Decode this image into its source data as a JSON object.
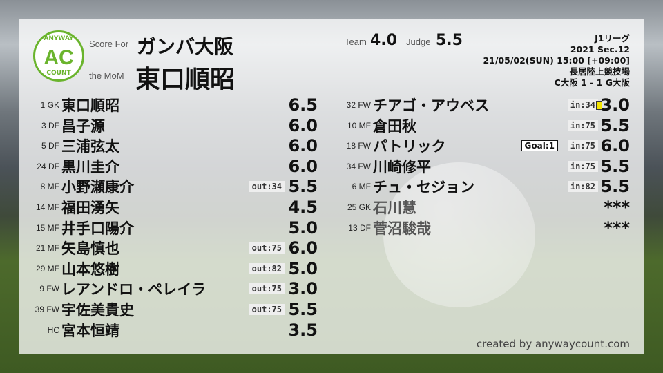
{
  "logo": {
    "top": "ANYWAY",
    "center": "AC",
    "bottom": "COUNT",
    "color": "#6ab42d"
  },
  "header": {
    "score_for_label": "Score For",
    "team": "ガンバ大阪",
    "mom_label": "the MoM",
    "mom": "東口順昭",
    "team_label": "Team",
    "team_score": "4.0",
    "judge_label": "Judge",
    "judge_score": "5.5"
  },
  "match": {
    "league": "J1リーグ",
    "section": "2021 Sec.12",
    "datetime": "21/05/02(SUN) 15:00 [+09:00]",
    "venue": "長居陸上競技場",
    "result": "C大阪 1 - 1 G大阪"
  },
  "starters": [
    {
      "num": "1",
      "pos": "GK",
      "name": "東口順昭",
      "score": "6.5"
    },
    {
      "num": "3",
      "pos": "DF",
      "name": "昌子源",
      "score": "6.0"
    },
    {
      "num": "5",
      "pos": "DF",
      "name": "三浦弦太",
      "score": "6.0"
    },
    {
      "num": "24",
      "pos": "DF",
      "name": "黒川圭介",
      "score": "6.0"
    },
    {
      "num": "8",
      "pos": "MF",
      "name": "小野瀬康介",
      "score": "5.5",
      "sub": "out:34"
    },
    {
      "num": "14",
      "pos": "MF",
      "name": "福田湧矢",
      "score": "4.5"
    },
    {
      "num": "15",
      "pos": "MF",
      "name": "井手口陽介",
      "score": "5.0"
    },
    {
      "num": "21",
      "pos": "MF",
      "name": "矢島慎也",
      "score": "6.0",
      "sub": "out:75"
    },
    {
      "num": "29",
      "pos": "MF",
      "name": "山本悠樹",
      "score": "5.0",
      "sub": "out:82"
    },
    {
      "num": "9",
      "pos": "FW",
      "name": "レアンドロ・ペレイラ",
      "score": "3.0",
      "sub": "out:75"
    },
    {
      "num": "39",
      "pos": "FW",
      "name": "宇佐美貴史",
      "score": "5.5",
      "sub": "out:75"
    },
    {
      "num": "",
      "pos": "HC",
      "name": "宮本恒靖",
      "score": "3.5"
    }
  ],
  "subs": [
    {
      "num": "32",
      "pos": "FW",
      "name": "チアゴ・アウベス",
      "score": "3.0",
      "sub": "in:34",
      "yellow_card": true
    },
    {
      "num": "10",
      "pos": "MF",
      "name": "倉田秋",
      "score": "5.5",
      "sub": "in:75"
    },
    {
      "num": "18",
      "pos": "FW",
      "name": "パトリック",
      "score": "6.0",
      "sub": "in:75",
      "goal": "Goal:1"
    },
    {
      "num": "34",
      "pos": "FW",
      "name": "川崎修平",
      "score": "5.5",
      "sub": "in:75"
    },
    {
      "num": "6",
      "pos": "MF",
      "name": "チュ・セジョン",
      "score": "5.5",
      "sub": "in:82"
    },
    {
      "num": "25",
      "pos": "GK",
      "name": "石川慧",
      "score": "***",
      "unused": true
    },
    {
      "num": "13",
      "pos": "DF",
      "name": "菅沼駿哉",
      "score": "***",
      "unused": true
    }
  ],
  "credit": "created by anywaycount.com"
}
